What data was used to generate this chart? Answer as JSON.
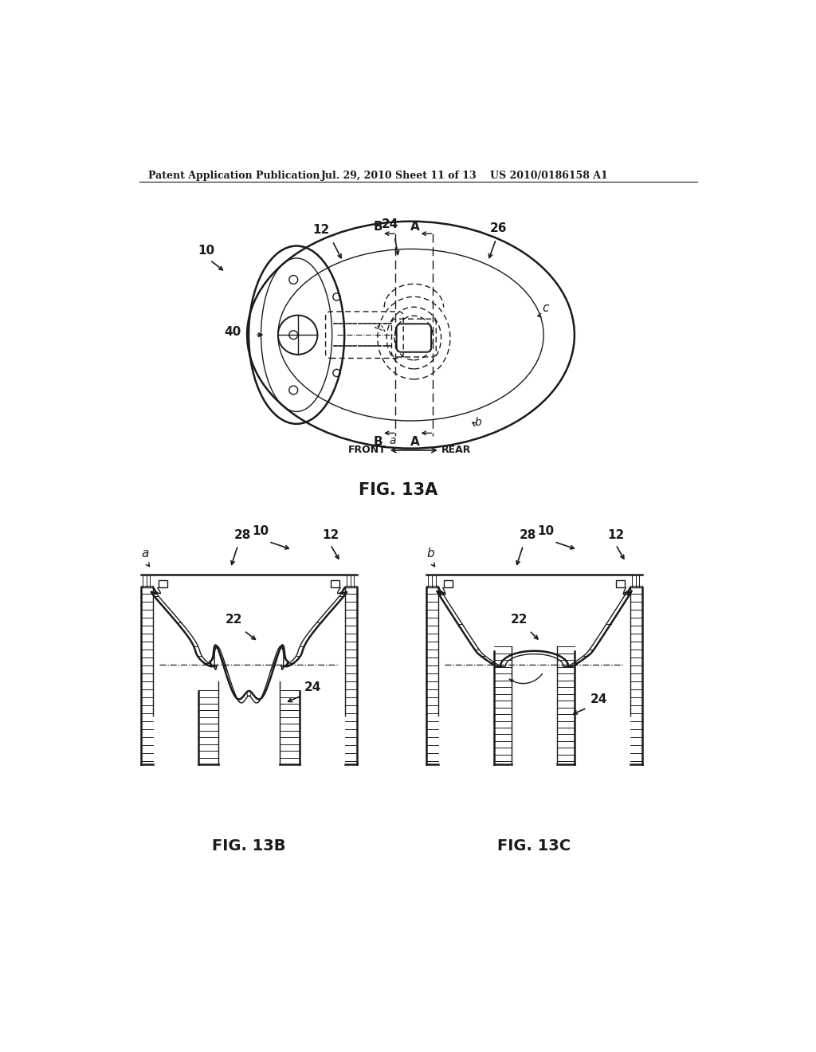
{
  "bg_color": "#ffffff",
  "line_color": "#1a1a1a",
  "header_text": "Patent Application Publication",
  "header_date": "Jul. 29, 2010",
  "header_sheet": "Sheet 11 of 13",
  "header_patent": "US 2010/0186158 A1",
  "fig13a_label": "FIG. 13A",
  "fig13b_label": "FIG. 13B",
  "fig13c_label": "FIG. 13C"
}
